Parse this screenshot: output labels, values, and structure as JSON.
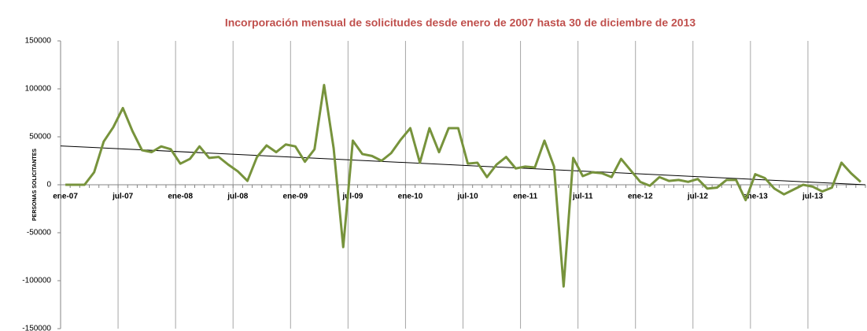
{
  "chart_data": {
    "type": "line",
    "title": "Incorporación mensual de solicitudes desde enero de 2007 hasta 30 de diciembre de 2013",
    "y_label": "PERSONAS SOLICITANTES",
    "categories": [
      "ene-07",
      null,
      null,
      null,
      null,
      null,
      "jul-07",
      null,
      null,
      null,
      null,
      null,
      "ene-08",
      null,
      null,
      null,
      null,
      null,
      "jul-08",
      null,
      null,
      null,
      null,
      null,
      "ene-09",
      null,
      null,
      null,
      null,
      null,
      "jul-09",
      null,
      null,
      null,
      null,
      null,
      "ene-10",
      null,
      null,
      null,
      null,
      null,
      "jul-10",
      null,
      null,
      null,
      null,
      null,
      "ene-11",
      null,
      null,
      null,
      null,
      null,
      "jul-11",
      null,
      null,
      null,
      null,
      null,
      "ene-12",
      null,
      null,
      null,
      null,
      null,
      "jul-12",
      null,
      null,
      null,
      null,
      null,
      "ene-13",
      null,
      null,
      null,
      null,
      null,
      "jul-13",
      null,
      null,
      null,
      null,
      null
    ],
    "series": [
      {
        "color": "#77933c",
        "values": [
          0,
          0,
          0,
          13000,
          45000,
          60000,
          80000,
          56000,
          36000,
          34000,
          40000,
          37000,
          22000,
          27000,
          40000,
          28000,
          29000,
          21000,
          14000,
          4000,
          29000,
          41000,
          34000,
          42000,
          40000,
          24000,
          37000,
          104000,
          38000,
          -65000,
          46000,
          32000,
          30000,
          25000,
          33000,
          47000,
          59000,
          23000,
          59000,
          34000,
          59000,
          59000,
          22000,
          23000,
          8000,
          21000,
          29000,
          17000,
          19000,
          18000,
          46000,
          19000,
          -106000,
          28000,
          9000,
          13000,
          12000,
          8000,
          27000,
          15000,
          3000,
          -1000,
          8000,
          4000,
          5000,
          3000,
          6000,
          -4000,
          -3000,
          5000,
          5000,
          -16000,
          11000,
          7000,
          -4000,
          -10000,
          -5000,
          0,
          -2000,
          -7000,
          -3000,
          23000,
          12000,
          3000
        ]
      }
    ],
    "trendline": {
      "color": "#000000",
      "values": [
        40500,
        0
      ]
    },
    "ylim": [
      -150000,
      150000
    ],
    "yticks": [
      -150000,
      -100000,
      -50000,
      0,
      50000,
      100000,
      150000
    ],
    "grid": true
  }
}
